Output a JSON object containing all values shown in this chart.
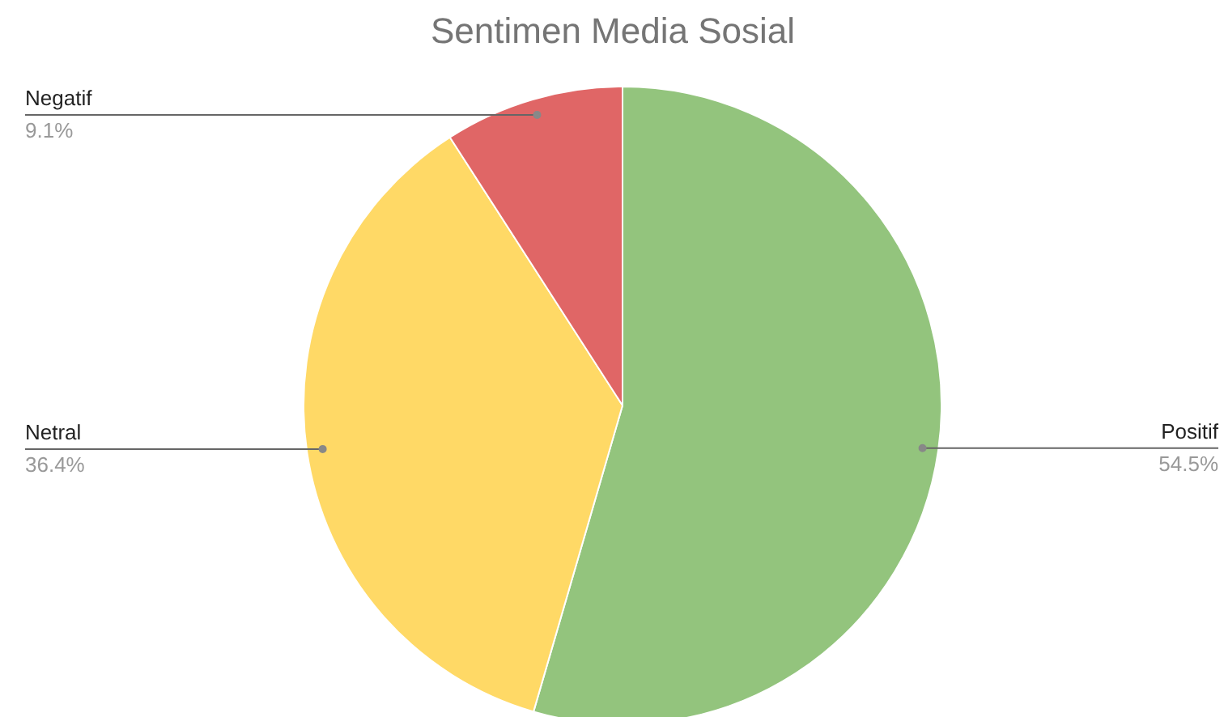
{
  "chart_data": {
    "type": "pie",
    "title": "Sentimen Media Sosial",
    "categories": [
      "Positif",
      "Netral",
      "Negatif"
    ],
    "values": [
      54.5,
      36.4,
      9.1
    ],
    "colors": [
      "#93c47d",
      "#ffd966",
      "#e06666"
    ],
    "value_labels": [
      "54.5%",
      "36.4%",
      "9.1%"
    ]
  }
}
